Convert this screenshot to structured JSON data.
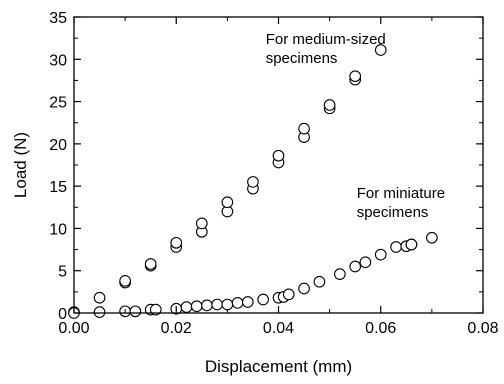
{
  "chart_data": {
    "type": "scatter",
    "title": "",
    "xlabel": "Displacement (mm)",
    "ylabel": "Load (N)",
    "xlim": [
      0,
      0.08
    ],
    "ylim": [
      0,
      35
    ],
    "xticks": [
      "0.00",
      "0.02",
      "0.04",
      "0.06",
      "0.08"
    ],
    "yticks": [
      "0",
      "5",
      "10",
      "15",
      "20",
      "25",
      "30",
      "35"
    ],
    "grid": false,
    "legend": "none",
    "marker": "open-circle",
    "colors": {
      "marker_stroke": "#000000",
      "axis": "#000000"
    },
    "annotations": [
      {
        "lines": [
          "For medium-sized",
          "specimens"
        ],
        "anchor": [
          0.0375,
          31.8
        ]
      },
      {
        "lines": [
          "For miniature",
          "specimens"
        ],
        "anchor": [
          0.0553,
          13.6
        ]
      }
    ],
    "series": [
      {
        "values": [
          [
            0.0,
            0.1
          ],
          [
            0.005,
            1.8
          ],
          [
            0.01,
            3.6
          ],
          [
            0.01,
            3.8
          ],
          [
            0.015,
            5.6
          ],
          [
            0.015,
            5.8
          ],
          [
            0.02,
            7.8
          ],
          [
            0.02,
            8.3
          ],
          [
            0.025,
            9.6
          ],
          [
            0.025,
            10.6
          ],
          [
            0.03,
            12.0
          ],
          [
            0.03,
            13.1
          ],
          [
            0.035,
            14.7
          ],
          [
            0.035,
            15.5
          ],
          [
            0.04,
            17.8
          ],
          [
            0.04,
            18.6
          ],
          [
            0.045,
            20.8
          ],
          [
            0.045,
            21.8
          ],
          [
            0.05,
            24.2
          ],
          [
            0.05,
            24.6
          ],
          [
            0.055,
            27.6
          ],
          [
            0.055,
            28.0
          ],
          [
            0.06,
            31.1
          ]
        ]
      },
      {
        "values": [
          [
            0.0,
            0.0
          ],
          [
            0.005,
            0.1
          ],
          [
            0.01,
            0.2
          ],
          [
            0.012,
            0.2
          ],
          [
            0.015,
            0.4
          ],
          [
            0.016,
            0.4
          ],
          [
            0.02,
            0.5
          ],
          [
            0.022,
            0.7
          ],
          [
            0.024,
            0.8
          ],
          [
            0.026,
            0.9
          ],
          [
            0.028,
            1.0
          ],
          [
            0.03,
            1.0
          ],
          [
            0.032,
            1.2
          ],
          [
            0.034,
            1.3
          ],
          [
            0.037,
            1.6
          ],
          [
            0.04,
            1.8
          ],
          [
            0.041,
            1.9
          ],
          [
            0.042,
            2.2
          ],
          [
            0.045,
            2.9
          ],
          [
            0.048,
            3.7
          ],
          [
            0.052,
            4.6
          ],
          [
            0.055,
            5.5
          ],
          [
            0.057,
            6.0
          ],
          [
            0.06,
            6.9
          ],
          [
            0.063,
            7.8
          ],
          [
            0.065,
            7.9
          ],
          [
            0.066,
            8.1
          ],
          [
            0.066,
            8.1
          ],
          [
            0.07,
            8.9
          ]
        ]
      }
    ]
  }
}
